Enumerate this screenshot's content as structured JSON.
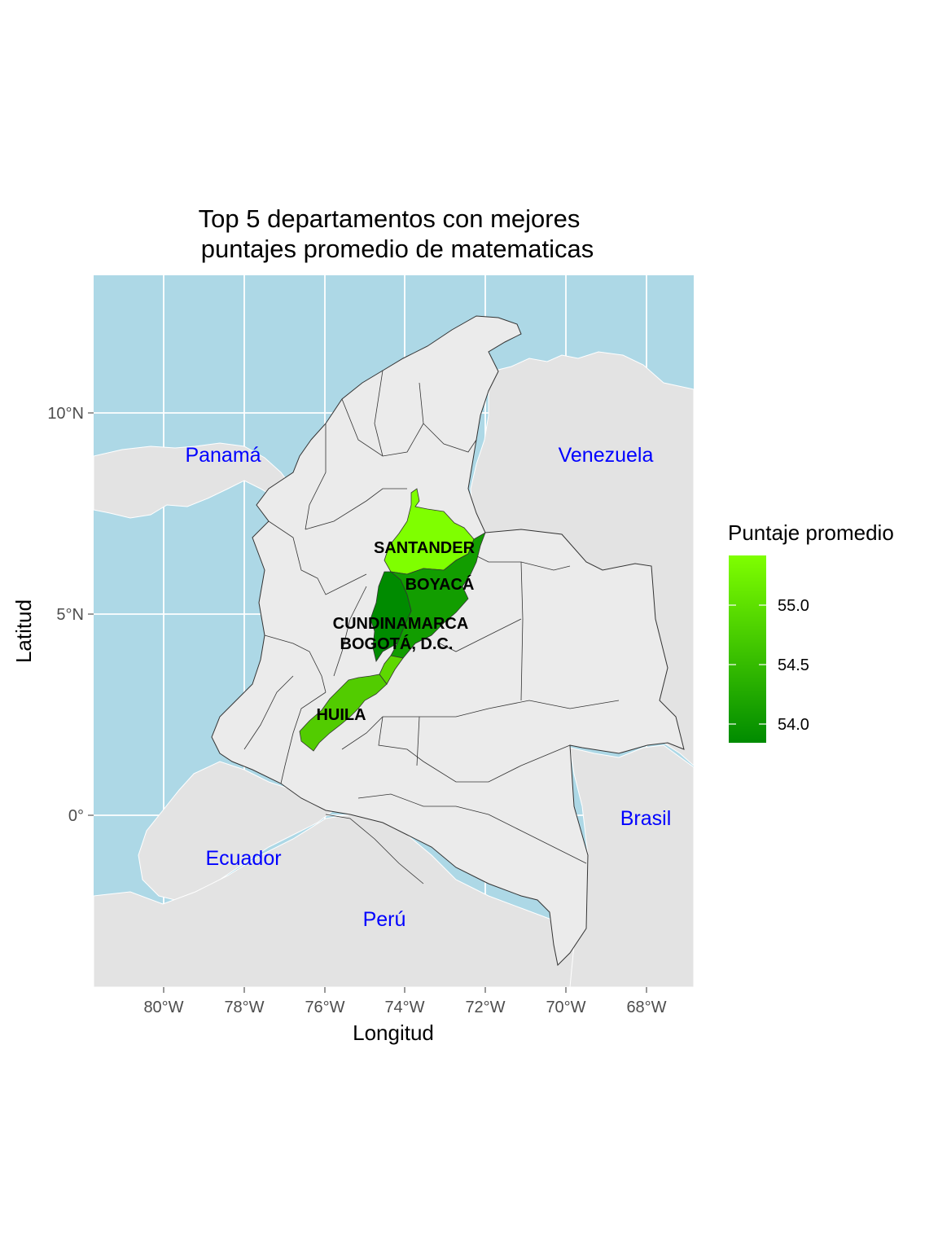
{
  "title_line1": "Top 5 departamentos con mejores",
  "title_line2": "puntajes promedio de matematicas",
  "x_axis": {
    "label": "Longitud",
    "ticks": [
      "80°W",
      "78°W",
      "76°W",
      "74°W",
      "72°W",
      "70°W",
      "68°W"
    ]
  },
  "y_axis": {
    "label": "Latitud",
    "ticks": [
      "10°N",
      "5°N",
      "0°"
    ]
  },
  "countries": {
    "panama": "Panamá",
    "venezuela": "Venezuela",
    "ecuador": "Ecuador",
    "peru": "Perú",
    "brasil": "Brasil"
  },
  "departments": {
    "santander": "SANTANDER",
    "boyaca": "BOYACÁ",
    "cundinamarca": "CUNDINAMARCA",
    "bogota": "BOGOTÁ, D.C.",
    "huila": "HUILA"
  },
  "legend": {
    "title": "Puntaje promedio",
    "ticks": [
      "55.0",
      "54.5",
      "54.0"
    ]
  },
  "colors": {
    "ocean": "#add8e6",
    "land": "#ebebeb",
    "neighbor": "#e3e3e3",
    "gradient_high": "#7fff00",
    "gradient_low": "#008b00",
    "country_label": "#0000ff"
  },
  "chart_data": {
    "type": "choropleth",
    "title": "Top 5 departamentos con mejores puntajes promedio de matematicas",
    "xlabel": "Longitud",
    "ylabel": "Latitud",
    "xlim": [
      -81.7,
      -66.8
    ],
    "ylim": [
      -4.3,
      13.4
    ],
    "grid": true,
    "legend_position": "right",
    "legend_title": "Puntaje promedio",
    "legend_range": [
      53.8,
      55.4
    ],
    "regions": [
      {
        "name": "SANTANDER",
        "value": 55.4
      },
      {
        "name": "BOYACÁ",
        "value": 54.0
      },
      {
        "name": "CUNDINAMARCA",
        "value": 53.8
      },
      {
        "name": "BOGOTÁ, D.C.",
        "value": 54.9
      },
      {
        "name": "HUILA",
        "value": 54.6
      }
    ]
  }
}
